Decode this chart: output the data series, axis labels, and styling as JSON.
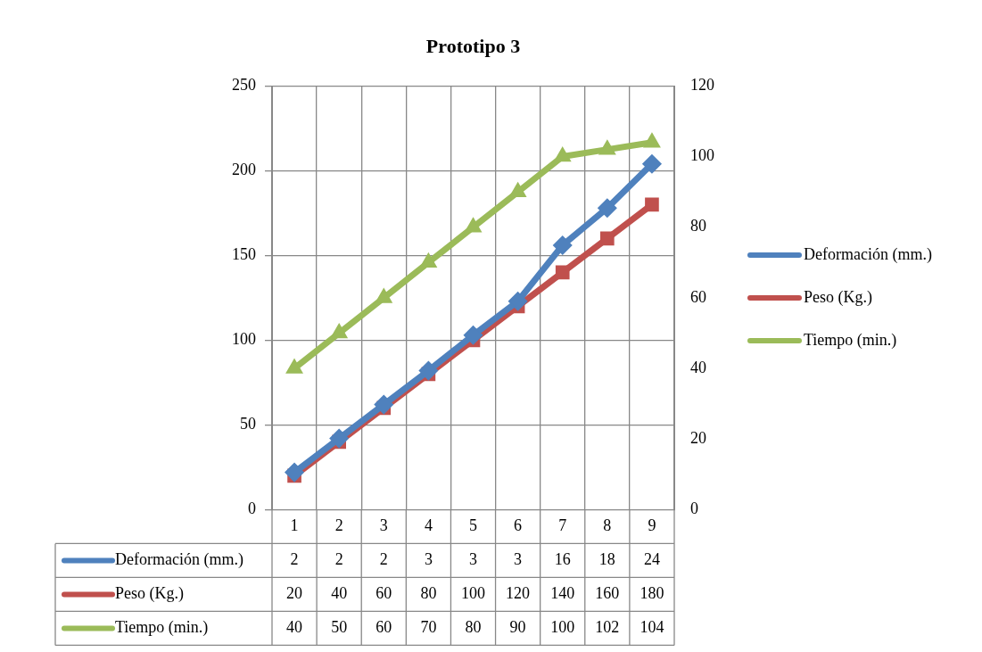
{
  "chart_data": {
    "type": "line",
    "title": "Prototipo 3",
    "categories": [
      "1",
      "2",
      "3",
      "4",
      "5",
      "6",
      "7",
      "8",
      "9"
    ],
    "series": [
      {
        "name": "Deformación (mm.)",
        "color": "#4f81bd",
        "marker": "diamond",
        "values": [
          22,
          42,
          62,
          82,
          103,
          123,
          156,
          178,
          204
        ]
      },
      {
        "name": "Peso (Kg.)",
        "color": "#c0504d",
        "marker": "square",
        "values": [
          20,
          40,
          60,
          80,
          100,
          120,
          140,
          160,
          180
        ],
        "value_labels": [
          "20",
          "40",
          "60",
          "80",
          "100",
          "120",
          "140",
          "160",
          "180"
        ]
      },
      {
        "name": "Tiempo (min.)",
        "color": "#9bbb59",
        "marker": "triangle",
        "axis": "y2",
        "values": [
          40,
          50,
          60,
          70,
          80,
          90,
          100,
          102,
          104
        ],
        "value_labels": [
          "40",
          "50",
          "60",
          "70",
          "80",
          "90",
          "100",
          "102",
          "104"
        ]
      }
    ],
    "ylim": [
      0,
      250
    ],
    "yticks": [
      0,
      50,
      100,
      150,
      200,
      250
    ],
    "y2lim": [
      0,
      120
    ],
    "y2ticks": [
      0,
      20,
      40,
      60,
      80,
      100,
      120
    ],
    "annotations": [
      "2",
      "2",
      "2",
      "3",
      "3",
      "3",
      "16",
      "18",
      "24"
    ],
    "grid": true,
    "legend": "right",
    "line_style": "solid"
  }
}
